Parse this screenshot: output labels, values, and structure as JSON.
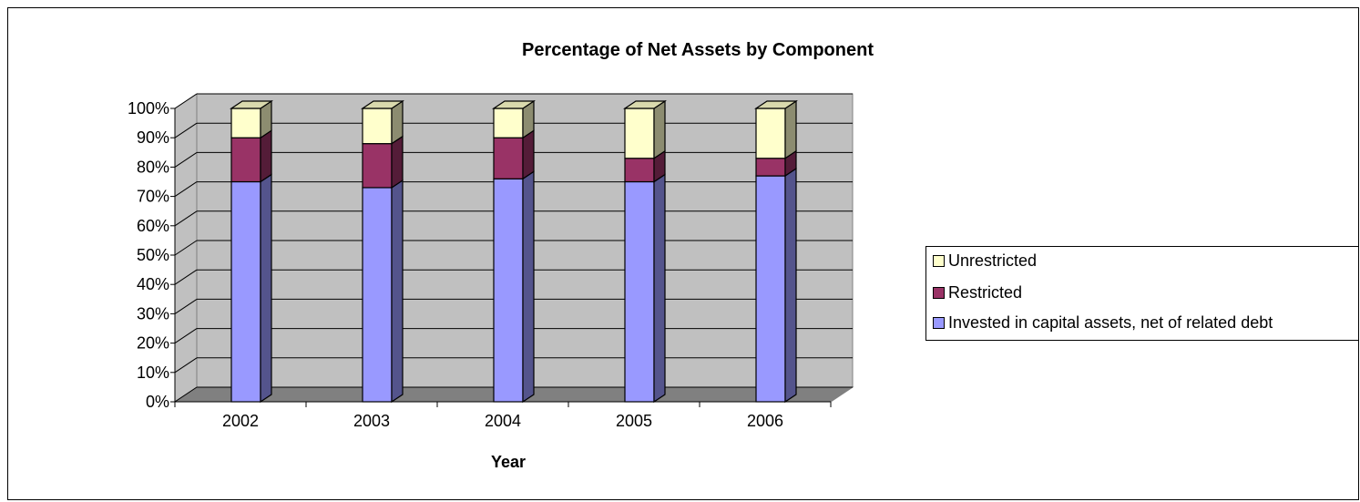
{
  "chart_data": {
    "type": "bar",
    "stacked": true,
    "percent_stacked": true,
    "three_d": true,
    "title": "Percentage of Net Assets by Component",
    "xlabel": "Year",
    "ylabel": "",
    "categories": [
      "2002",
      "2003",
      "2004",
      "2005",
      "2006"
    ],
    "y_ticks": [
      "0%",
      "10%",
      "20%",
      "30%",
      "40%",
      "50%",
      "60%",
      "70%",
      "80%",
      "90%",
      "100%"
    ],
    "ylim": [
      0,
      100
    ],
    "grid": true,
    "legend_position": "right",
    "series": [
      {
        "name": "Invested in capital assets, net of related debt",
        "values": [
          75,
          73,
          76,
          75,
          77
        ],
        "color": "#9999ff"
      },
      {
        "name": "Restricted",
        "values": [
          15,
          15,
          14,
          8,
          6
        ],
        "color": "#993366"
      },
      {
        "name": "Unrestricted",
        "values": [
          10,
          12,
          10,
          17,
          17
        ],
        "color": "#ffffcc"
      }
    ]
  },
  "colors": {
    "plot_wall": "#c0c0c0",
    "plot_floor": "#808080"
  }
}
